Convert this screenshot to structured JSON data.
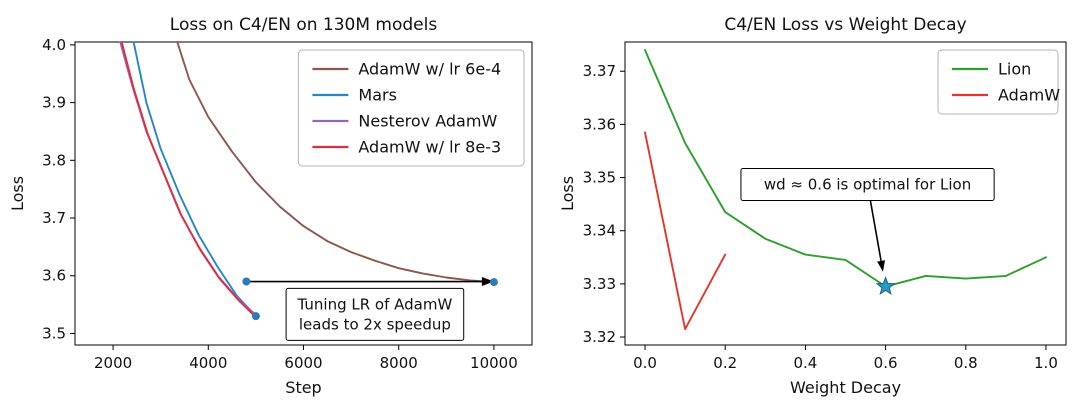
{
  "page": {
    "background": "#ffffff"
  },
  "chart_data": [
    {
      "type": "line",
      "title": "Loss on C4/EN on 130M models",
      "xlabel": "Step",
      "ylabel": "Loss",
      "xlim": [
        1200,
        10800
      ],
      "ylim": [
        3.48,
        4.005
      ],
      "xticks": [
        2000,
        4000,
        6000,
        8000,
        10000
      ],
      "yticks": [
        3.5,
        3.6,
        3.7,
        3.8,
        3.9,
        4.0
      ],
      "xtick_decimals": 0,
      "ytick_decimals": 1,
      "grid": false,
      "legend": {
        "position": "upper-right"
      },
      "series": [
        {
          "name": "AdamW w/ lr 6e-4",
          "color": "#8c564b",
          "x": [
            3350,
            3600,
            4000,
            4500,
            5000,
            5500,
            6000,
            6500,
            7000,
            7500,
            8000,
            8500,
            9000,
            9500,
            10000
          ],
          "y": [
            4.005,
            3.94,
            3.875,
            3.815,
            3.762,
            3.72,
            3.686,
            3.66,
            3.641,
            3.626,
            3.613,
            3.604,
            3.597,
            3.592,
            3.589
          ]
        },
        {
          "name": "Mars",
          "color": "#2585c7",
          "x": [
            2430,
            2700,
            3000,
            3400,
            3800,
            4200,
            4600,
            5000
          ],
          "y": [
            4.005,
            3.9,
            3.82,
            3.74,
            3.67,
            3.615,
            3.565,
            3.53
          ]
        },
        {
          "name": "Nesterov AdamW",
          "color": "#9467bd",
          "x": [
            2150,
            2400,
            2700,
            3000,
            3400,
            3800,
            4200,
            4600,
            5000
          ],
          "y": [
            4.005,
            3.93,
            3.85,
            3.79,
            3.71,
            3.65,
            3.6,
            3.562,
            3.532
          ]
        },
        {
          "name": "AdamW w/ lr 8e-3",
          "color": "#dc2f3e",
          "x": [
            2180,
            2430,
            2730,
            3030,
            3430,
            3830,
            4230,
            4630,
            5000
          ],
          "y": [
            4.005,
            3.925,
            3.845,
            3.785,
            3.705,
            3.645,
            3.596,
            3.558,
            3.528
          ]
        }
      ],
      "markers": [
        {
          "x": 5000,
          "y": 3.53,
          "color": "#2b7bba"
        },
        {
          "x": 4800,
          "y": 3.59,
          "color": "#2b7bba"
        },
        {
          "x": 10000,
          "y": 3.589,
          "color": "#2b7bba"
        }
      ],
      "arrows": [
        {
          "from": [
            4800,
            3.59
          ],
          "to": [
            10000,
            3.59
          ],
          "color": "#000000"
        }
      ],
      "annotations": [
        {
          "lines": [
            "Tuning LR of AdamW",
            "leads to 2x speedup"
          ],
          "x": 7500,
          "y": 3.533,
          "arrow_to": null
        }
      ]
    },
    {
      "type": "line",
      "title": "C4/EN Loss vs Weight Decay",
      "xlabel": "Weight Decay",
      "ylabel": "Loss",
      "xlim": [
        -0.05,
        1.05
      ],
      "ylim": [
        3.3185,
        3.3755
      ],
      "xticks": [
        0.0,
        0.2,
        0.4,
        0.6,
        0.8,
        1.0
      ],
      "yticks": [
        3.32,
        3.33,
        3.34,
        3.35,
        3.36,
        3.37
      ],
      "xtick_decimals": 1,
      "ytick_decimals": 2,
      "grid": false,
      "legend": {
        "position": "upper-right"
      },
      "series": [
        {
          "name": "Lion",
          "color": "#2ca02c",
          "x": [
            0.0,
            0.1,
            0.2,
            0.3,
            0.4,
            0.5,
            0.6,
            0.7,
            0.8,
            0.9,
            1.0
          ],
          "y": [
            3.374,
            3.3565,
            3.3435,
            3.3385,
            3.3355,
            3.3345,
            3.3295,
            3.3315,
            3.331,
            3.3315,
            3.335
          ]
        },
        {
          "name": "AdamW",
          "color": "#e0362c",
          "x": [
            0.0,
            0.1,
            0.2
          ],
          "y": [
            3.3585,
            3.3215,
            3.3355
          ]
        }
      ],
      "markers": [],
      "arrows": [],
      "star": {
        "x": 0.6,
        "y": 3.3295,
        "color": "#2b9ac8",
        "edge": "#17627f"
      },
      "annotations": [
        {
          "lines": [
            "wd ≈ 0.6 is optimal for Lion"
          ],
          "x": 0.555,
          "y": 3.3487,
          "arrow_to": [
            0.6,
            3.3295
          ]
        }
      ]
    }
  ]
}
